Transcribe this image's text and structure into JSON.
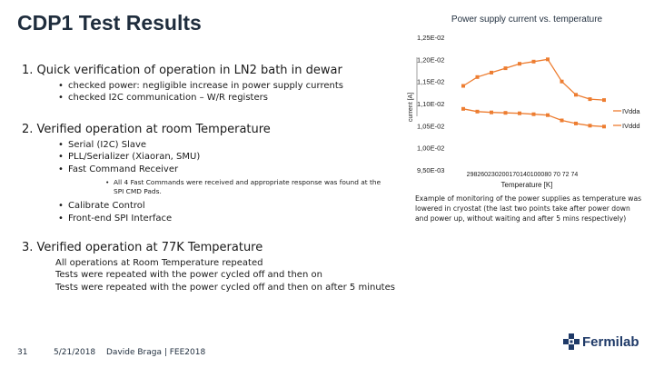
{
  "slide": {
    "title": "CDP1 Test Results",
    "sections": [
      {
        "heading": "1.  Quick verification of operation in LN2 bath in dewar",
        "bullets": [
          "checked power: negligible increase in power supply currents",
          "checked I2C communication – W/R registers"
        ]
      },
      {
        "heading": "2. Verified operation at room Temperature",
        "bullets": [
          "Serial (I2C) Slave",
          "PLL/Serializer (Xiaoran, SMU)",
          "Fast Command Receiver"
        ],
        "subbullet": "All 4 Fast Commands were received and appropriate response was found at the SPI CMD Pads.",
        "bullets2": [
          "Calibrate Control",
          "Front-end SPI Interface"
        ]
      },
      {
        "heading": "3. Verified operation at 77K Temperature",
        "lines": [
          "All operations at Room Temperature repeated",
          "Tests were repeated with the power cycled off and then on",
          "Tests were repeated with the power cycled off and then on after 5 minutes"
        ]
      }
    ],
    "caption": "Example of monitoring of the power supplies as temperature was lowered in cryostat (the last two points take after power down and power up, without waiting and after 5 mins respectively)"
  },
  "footer": {
    "page": "31",
    "date": "5/21/2018",
    "author": "Davide Braga | FEE2018",
    "logo_text": "Fermilab"
  },
  "colors": {
    "title": "#1f2d3d",
    "series": "#ed7d31",
    "logo": "#1f3a68"
  },
  "chart_data": {
    "type": "line",
    "title": "Power supply current vs. temperature",
    "xlabel": "Temperature [K]",
    "ylabel": "current [A]",
    "x_tick_labels": [
      "298",
      "260",
      "230",
      "200",
      "170",
      "140",
      "100",
      "80",
      "70",
      "72",
      "74"
    ],
    "x_tick_text": "298260230200170140100080 70 72 74",
    "y_tick_labels": [
      "9,50E-03",
      "1,00E-02",
      "1,05E-02",
      "1,10E-02",
      "1,15E-02",
      "1,20E-02",
      "1,25E-02"
    ],
    "ylim": [
      0.0095,
      0.0125
    ],
    "series": [
      {
        "name": "IVdda",
        "values": [
          0.0114,
          0.0116,
          0.0117,
          0.0118,
          0.0119,
          0.01195,
          0.012,
          0.0115,
          0.0112,
          0.0111,
          0.01108
        ]
      },
      {
        "name": "IVddd",
        "values": [
          0.01088,
          0.01082,
          0.0108,
          0.01079,
          0.01078,
          0.01076,
          0.01074,
          0.01062,
          0.01055,
          0.0105,
          0.01048
        ]
      }
    ],
    "legend": "right",
    "grid": false
  }
}
